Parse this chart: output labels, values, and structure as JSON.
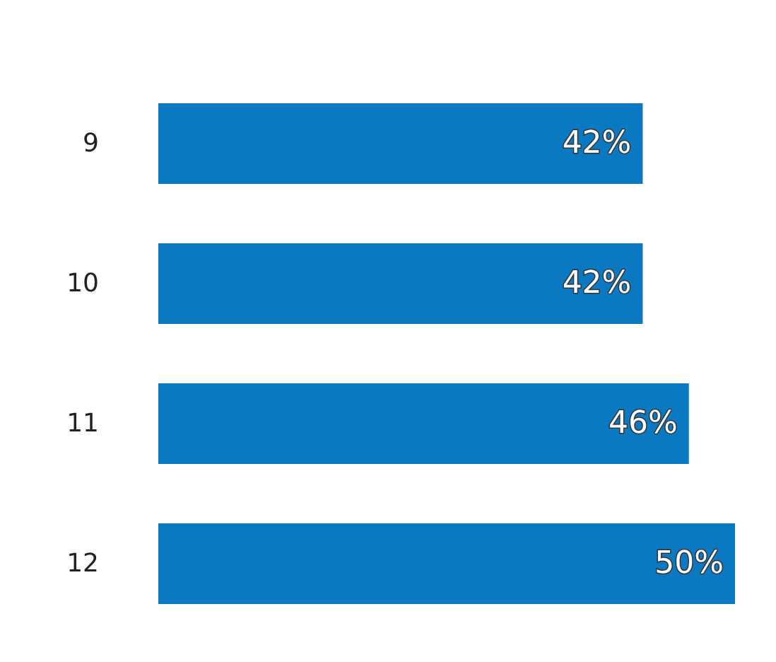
{
  "chart_data": {
    "type": "bar",
    "orientation": "horizontal",
    "categories": [
      "9",
      "10",
      "11",
      "12"
    ],
    "values": [
      42,
      42,
      46,
      50
    ],
    "value_labels": [
      "42%",
      "42%",
      "46%",
      "50%"
    ],
    "color": "#0a79c1"
  }
}
